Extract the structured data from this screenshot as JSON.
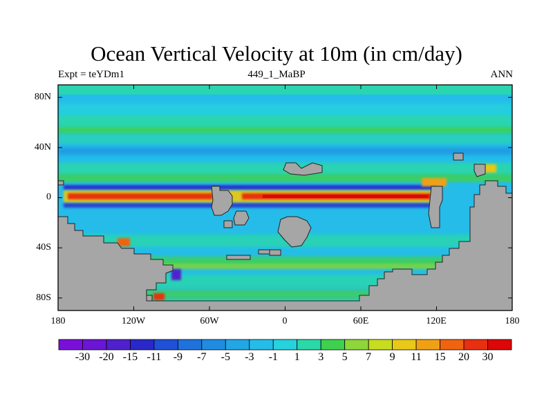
{
  "title": "Ocean Vertical Velocity at 10m (in cm/day)",
  "left_subtitle": "Expt = teYDm1",
  "center_subtitle": "449_1_MaBP",
  "right_subtitle": "ANN",
  "lat_ticks": [
    "80N",
    "40N",
    "0",
    "40S",
    "80S"
  ],
  "lon_ticks": [
    "180",
    "120W",
    "60W",
    "0",
    "60E",
    "120E",
    "180"
  ],
  "colorbar": {
    "labels": [
      "-30",
      "-20",
      "-15",
      "-11",
      "-9",
      "-7",
      "-5",
      "-3",
      "-1",
      "1",
      "3",
      "5",
      "7",
      "9",
      "11",
      "15",
      "20",
      "30"
    ],
    "colors": [
      "#7a10d8",
      "#6a16d4",
      "#5020cc",
      "#2a28c8",
      "#1f50d6",
      "#1f72dc",
      "#1f8ce0",
      "#22a6e4",
      "#25bcea",
      "#26d2dc",
      "#2ad8a8",
      "#3fd050",
      "#8ed63a",
      "#c8dc20",
      "#e8c818",
      "#f0a014",
      "#ee6410",
      "#e83010",
      "#dc0808"
    ]
  },
  "colors": {
    "land": "#a6a6a6",
    "ocean_base": "#25bcea",
    "positive_band": "#2ad8a8",
    "upwelling": "#e83010",
    "downwelling": "#2a28c8"
  }
}
